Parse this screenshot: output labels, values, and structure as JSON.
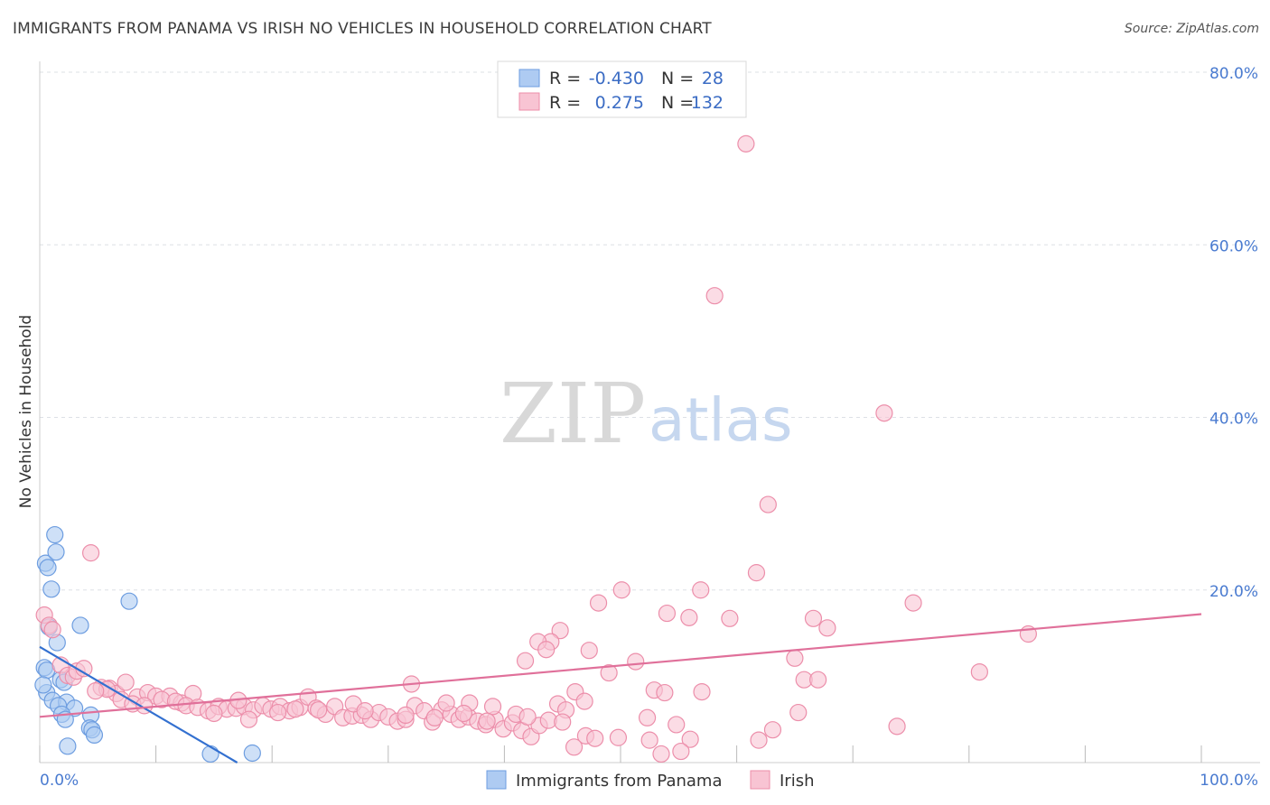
{
  "title": "IMMIGRANTS FROM PANAMA VS IRISH NO VEHICLES IN HOUSEHOLD CORRELATION CHART",
  "source": "Source: ZipAtlas.com",
  "watermark": {
    "zip": "ZIP",
    "atlas": "atlas"
  },
  "colors": {
    "blue_fill": "#aecbf2",
    "blue_stroke": "#6d9de0",
    "blue_line": "#3370d0",
    "pink_fill": "#f8c4d3",
    "pink_stroke": "#ec8eaa",
    "pink_line": "#e0709a",
    "grid": "#dde0e6",
    "tick_label": "#4a7bd0"
  },
  "legend": {
    "rows": [
      {
        "r_label": "R =",
        "r_value": "-0.430",
        "n_label": "N =",
        "n_value": "28"
      },
      {
        "r_label": "R =",
        "r_value": "0.275",
        "n_label": "N =",
        "n_value": "132"
      }
    ]
  },
  "chart_data": {
    "type": "scatter",
    "title": "IMMIGRANTS FROM PANAMA VS IRISH NO VEHICLES IN HOUSEHOLD CORRELATION CHART",
    "xlabel": "",
    "ylabel": "No Vehicles in Household",
    "xlim": [
      0,
      100
    ],
    "ylim": [
      0,
      80
    ],
    "x_tick_labels": [
      "0.0%",
      "100.0%"
    ],
    "y_ticks": [
      20,
      40,
      60,
      80
    ],
    "y_tick_labels": [
      "20.0%",
      "40.0%",
      "60.0%",
      "80.0%"
    ],
    "x_minor_ticks": [
      0,
      10,
      20,
      30,
      40,
      50,
      60,
      70,
      80,
      90,
      100
    ],
    "grid": true,
    "series": [
      {
        "name": "Immigrants from Panama",
        "color": "blue",
        "r": -0.43,
        "n": 28,
        "trend": {
          "x0": 0,
          "y0": 13.4,
          "x1": 17.0,
          "y1": 0
        },
        "points": [
          [
            0.5,
            23.1
          ],
          [
            0.7,
            22.6
          ],
          [
            1.3,
            26.4
          ],
          [
            1.4,
            24.4
          ],
          [
            1.0,
            20.1
          ],
          [
            0.8,
            15.7
          ],
          [
            3.5,
            15.9
          ],
          [
            7.7,
            18.7
          ],
          [
            1.5,
            13.9
          ],
          [
            0.4,
            11.0
          ],
          [
            0.6,
            10.7
          ],
          [
            1.8,
            9.6
          ],
          [
            2.1,
            9.3
          ],
          [
            0.6,
            8.1
          ],
          [
            1.1,
            7.2
          ],
          [
            2.3,
            7.0
          ],
          [
            1.6,
            6.6
          ],
          [
            3.0,
            6.3
          ],
          [
            1.9,
            5.6
          ],
          [
            2.2,
            5.0
          ],
          [
            4.4,
            5.5
          ],
          [
            4.3,
            4.0
          ],
          [
            4.5,
            3.8
          ],
          [
            4.7,
            3.2
          ],
          [
            2.4,
            1.9
          ],
          [
            14.7,
            1.0
          ],
          [
            18.3,
            1.1
          ],
          [
            0.3,
            9.0
          ]
        ]
      },
      {
        "name": "Irish",
        "color": "pink",
        "r": 0.275,
        "n": 132,
        "trend": {
          "x0": 0,
          "y0": 5.3,
          "x1": 100,
          "y1": 17.2
        },
        "points": [
          [
            60.8,
            71.7
          ],
          [
            58.1,
            54.1
          ],
          [
            72.7,
            40.5
          ],
          [
            62.7,
            29.9
          ],
          [
            61.7,
            22.0
          ],
          [
            4.4,
            24.3
          ],
          [
            0.4,
            17.1
          ],
          [
            0.8,
            15.9
          ],
          [
            1.1,
            15.4
          ],
          [
            50.1,
            20.0
          ],
          [
            56.9,
            20.0
          ],
          [
            75.2,
            18.5
          ],
          [
            48.1,
            18.5
          ],
          [
            54.0,
            17.3
          ],
          [
            55.9,
            16.8
          ],
          [
            59.4,
            16.7
          ],
          [
            66.6,
            16.7
          ],
          [
            67.8,
            15.6
          ],
          [
            85.1,
            14.9
          ],
          [
            47.3,
            13.0
          ],
          [
            44.8,
            15.3
          ],
          [
            44.0,
            14.0
          ],
          [
            42.9,
            14.0
          ],
          [
            43.6,
            13.1
          ],
          [
            41.8,
            11.8
          ],
          [
            51.3,
            11.7
          ],
          [
            65.0,
            12.1
          ],
          [
            80.9,
            10.5
          ],
          [
            49.0,
            10.4
          ],
          [
            65.8,
            9.6
          ],
          [
            67.0,
            9.6
          ],
          [
            1.8,
            11.3
          ],
          [
            2.4,
            10.1
          ],
          [
            2.9,
            9.9
          ],
          [
            3.2,
            10.6
          ],
          [
            3.8,
            10.9
          ],
          [
            5.3,
            8.7
          ],
          [
            6.0,
            8.6
          ],
          [
            6.6,
            8.0
          ],
          [
            7.4,
            9.3
          ],
          [
            8.4,
            7.6
          ],
          [
            9.3,
            8.1
          ],
          [
            10.0,
            7.7
          ],
          [
            11.2,
            7.7
          ],
          [
            12.2,
            6.9
          ],
          [
            13.2,
            8.0
          ],
          [
            5.8,
            8.5
          ],
          [
            4.8,
            8.3
          ],
          [
            7.0,
            7.3
          ],
          [
            8.0,
            6.8
          ],
          [
            9.0,
            6.6
          ],
          [
            10.5,
            7.3
          ],
          [
            11.7,
            7.1
          ],
          [
            12.6,
            6.6
          ],
          [
            13.6,
            6.4
          ],
          [
            14.5,
            6.0
          ],
          [
            15.4,
            6.5
          ],
          [
            16.1,
            6.2
          ],
          [
            16.9,
            6.3
          ],
          [
            17.6,
            6.5
          ],
          [
            18.4,
            6.1
          ],
          [
            19.2,
            6.6
          ],
          [
            19.9,
            6.2
          ],
          [
            20.7,
            6.5
          ],
          [
            21.5,
            6.0
          ],
          [
            22.4,
            6.4
          ],
          [
            23.1,
            7.6
          ],
          [
            23.8,
            6.3
          ],
          [
            24.6,
            5.6
          ],
          [
            25.4,
            6.5
          ],
          [
            26.1,
            5.2
          ],
          [
            26.9,
            5.4
          ],
          [
            27.7,
            5.5
          ],
          [
            28.5,
            5.0
          ],
          [
            29.2,
            5.8
          ],
          [
            30.0,
            5.3
          ],
          [
            30.8,
            4.8
          ],
          [
            31.5,
            5.0
          ],
          [
            32.3,
            6.6
          ],
          [
            33.1,
            6.0
          ],
          [
            33.8,
            4.7
          ],
          [
            34.6,
            6.1
          ],
          [
            35.4,
            5.6
          ],
          [
            36.1,
            5.0
          ],
          [
            36.9,
            5.3
          ],
          [
            37.7,
            4.8
          ],
          [
            38.4,
            4.4
          ],
          [
            39.2,
            5.0
          ],
          [
            39.9,
            3.9
          ],
          [
            40.7,
            4.6
          ],
          [
            41.5,
            3.7
          ],
          [
            42.3,
            3.0
          ],
          [
            43.0,
            4.3
          ],
          [
            43.8,
            4.9
          ],
          [
            44.6,
            6.8
          ],
          [
            45.3,
            6.1
          ],
          [
            46.1,
            8.2
          ],
          [
            46.9,
            7.1
          ],
          [
            15.0,
            5.7
          ],
          [
            17.1,
            7.2
          ],
          [
            22.0,
            6.2
          ],
          [
            27.0,
            6.8
          ],
          [
            32.0,
            9.1
          ],
          [
            35.0,
            6.9
          ],
          [
            37.0,
            6.9
          ],
          [
            39.0,
            6.5
          ],
          [
            41.0,
            5.6
          ],
          [
            42.0,
            5.3
          ],
          [
            45.0,
            4.7
          ],
          [
            47.0,
            3.1
          ],
          [
            18.0,
            5.0
          ],
          [
            20.5,
            5.8
          ],
          [
            24.0,
            6.1
          ],
          [
            28.0,
            6.0
          ],
          [
            31.5,
            5.5
          ],
          [
            34.0,
            5.2
          ],
          [
            36.5,
            5.7
          ],
          [
            38.5,
            4.8
          ],
          [
            52.3,
            5.2
          ],
          [
            52.9,
            8.4
          ],
          [
            54.8,
            4.4
          ],
          [
            56.0,
            2.7
          ],
          [
            57.0,
            8.2
          ],
          [
            53.8,
            8.1
          ],
          [
            63.1,
            3.8
          ],
          [
            65.3,
            5.8
          ],
          [
            73.8,
            4.2
          ],
          [
            61.9,
            2.6
          ],
          [
            46.0,
            1.8
          ],
          [
            47.8,
            2.8
          ],
          [
            49.8,
            2.9
          ],
          [
            52.5,
            2.6
          ],
          [
            55.2,
            1.3
          ],
          [
            53.5,
            1.0
          ]
        ]
      }
    ]
  },
  "axis": {
    "ylabel": "No Vehicles in Household",
    "x_min_label": "0.0%",
    "x_max_label": "100.0%"
  },
  "bottom_legend": [
    {
      "label": "Immigrants from Panama",
      "color": "blue"
    },
    {
      "label": "Irish",
      "color": "pink"
    }
  ]
}
